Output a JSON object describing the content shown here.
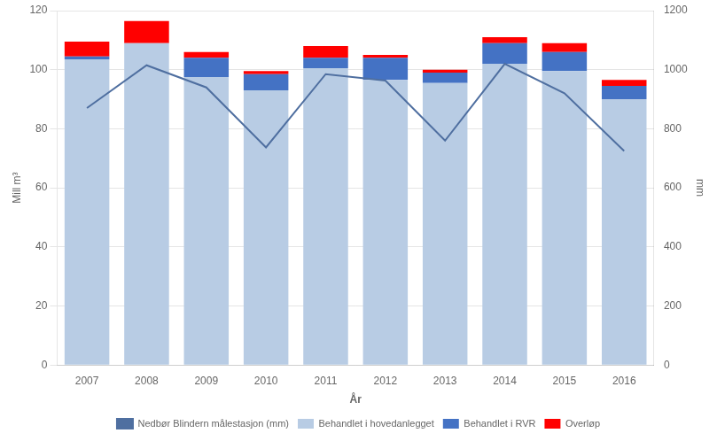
{
  "chart_data": {
    "type": "bar",
    "stacked": true,
    "categories": [
      "2007",
      "2008",
      "2009",
      "2010",
      "2011",
      "2012",
      "2013",
      "2014",
      "2015",
      "2016"
    ],
    "series": [
      {
        "name": "Behandlet i hovedanlegget",
        "color": "#b8cce4",
        "values": [
          103.5,
          109.0,
          97.5,
          93.0,
          100.5,
          96.5,
          95.5,
          102.0,
          99.5,
          90.0
        ]
      },
      {
        "name": "Behandlet i RVR",
        "color": "#4472c4",
        "values": [
          1.0,
          0.0,
          6.5,
          5.5,
          3.5,
          7.5,
          3.5,
          7.0,
          6.5,
          4.5
        ]
      },
      {
        "name": "Overløp",
        "color": "#ff0000",
        "values": [
          5.0,
          7.5,
          2.0,
          1.0,
          4.0,
          1.0,
          1.0,
          2.0,
          3.0,
          2.0
        ]
      },
      {
        "name": "Nedbør Blindern målestasjon (mm)",
        "color": "#4f6fa0",
        "type": "line",
        "axis": "y2",
        "values": [
          870,
          1015,
          940,
          737,
          985,
          963,
          760,
          1020,
          920,
          725
        ]
      }
    ],
    "xlabel": "År",
    "ylabel": "Mill m³",
    "y2label": "mm",
    "ylim": [
      0,
      120
    ],
    "yticks": [
      0,
      20,
      40,
      60,
      80,
      100,
      120
    ],
    "y2lim": [
      0,
      1200
    ],
    "y2ticks": [
      0,
      200,
      400,
      600,
      800,
      1000,
      1200
    ],
    "grid": true,
    "legend": "bottom"
  }
}
